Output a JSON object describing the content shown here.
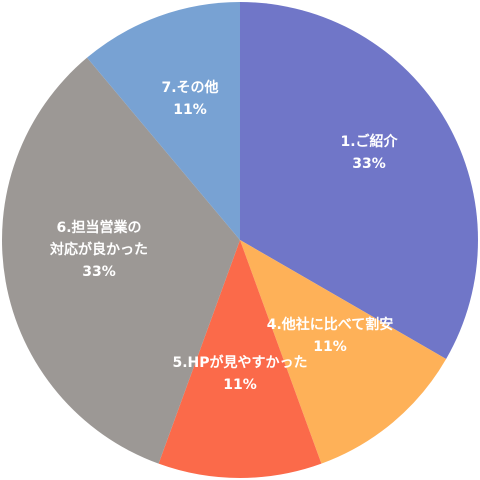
{
  "chart_data": {
    "type": "pie",
    "slices": [
      {
        "label": "1.ご紹介",
        "value": 33,
        "value_label": "33%",
        "color": "#7076C8"
      },
      {
        "label": "4.他社に比べて割安",
        "value": 11,
        "value_label": "11%",
        "color": "#FEB158"
      },
      {
        "label": "5.HPが見やすかった",
        "value": 11,
        "value_label": "11%",
        "color": "#FB6A4A"
      },
      {
        "label": "6.担当営業の対応が良かった",
        "label_lines": [
          "6.担当営業の",
          "対応が良かった"
        ],
        "value": 33,
        "value_label": "33%",
        "color": "#9C9895"
      },
      {
        "label": "7.その他",
        "value": 11,
        "value_label": "11%",
        "color": "#78A2D3"
      }
    ],
    "start_angle_deg": 0,
    "direction": "clockwise",
    "legend": "none"
  }
}
